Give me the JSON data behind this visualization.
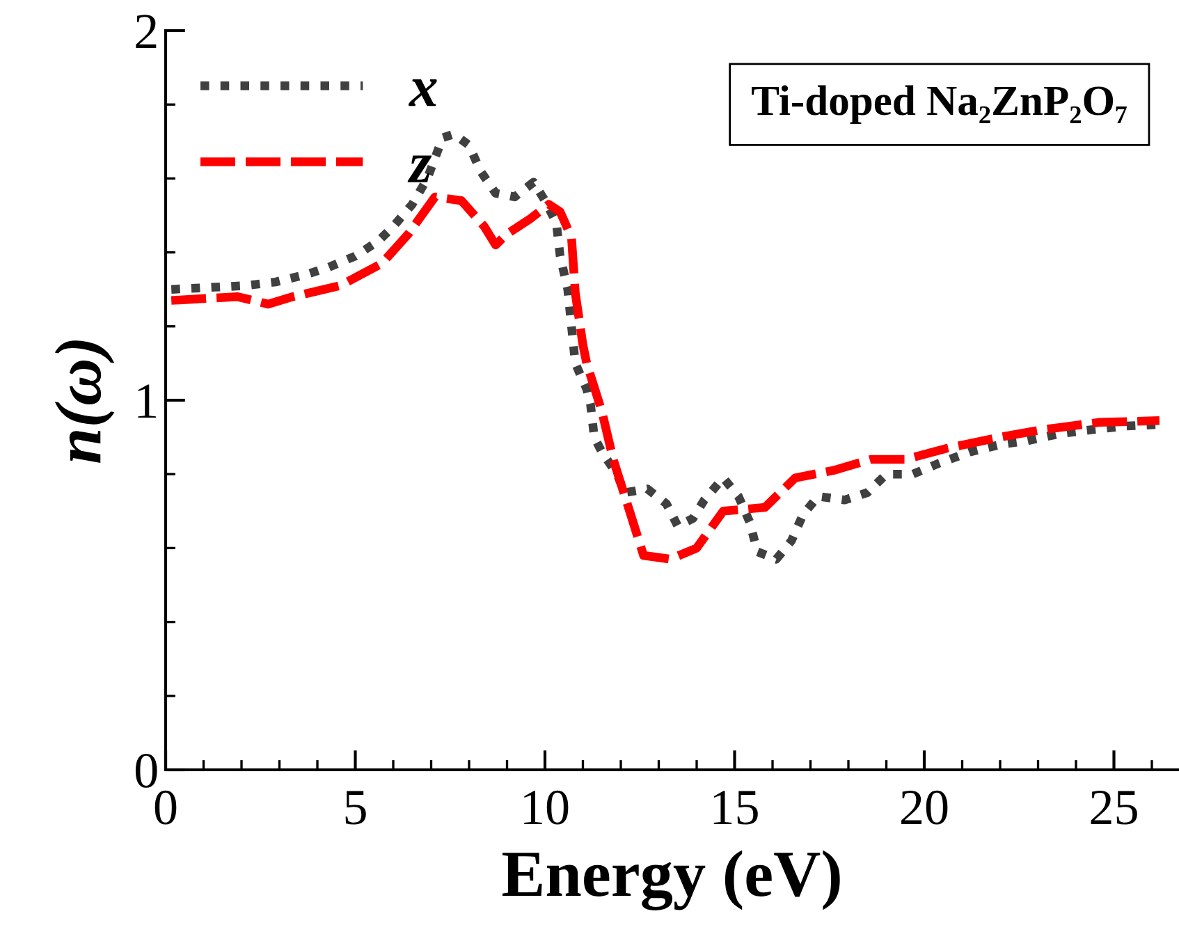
{
  "chart_data": {
    "type": "line",
    "xlabel": "Energy (eV)",
    "ylabel": "n(ω)",
    "xlim": [
      0,
      26.7
    ],
    "xticks": [
      0,
      5,
      10,
      15,
      20,
      25
    ],
    "ylim": [
      0,
      2
    ],
    "yticks": [
      0,
      1,
      2
    ],
    "grid": false,
    "legend": "top left",
    "marker": "none",
    "annotations": [
      "Ti-doped Na₂ZnP₂O₇"
    ],
    "series": [
      {
        "name": "x",
        "color": "#404040",
        "line_style": "dotted",
        "x": [
          0.15,
          2.1,
          2.9,
          3.7,
          4.3,
          5.0,
          5.6,
          6.0,
          6.5,
          6.9,
          7.3,
          7.6,
          8.0,
          8.3,
          8.7,
          9.2,
          9.7,
          10.0,
          10.3,
          10.4,
          10.6,
          10.7,
          10.8,
          11.1,
          11.2,
          11.3,
          11.5,
          11.9,
          12.1,
          12.7,
          13.2,
          13.5,
          13.9,
          14.2,
          14.7,
          15.1,
          15.4,
          15.6,
          16.1,
          16.5,
          16.8,
          17.2,
          17.9,
          18.5,
          19.0,
          19.7,
          20.4,
          21.2,
          22.0,
          22.7,
          23.6,
          24.4,
          25.3,
          26.3
        ],
        "values": [
          1.3,
          1.31,
          1.32,
          1.34,
          1.36,
          1.39,
          1.43,
          1.47,
          1.53,
          1.6,
          1.71,
          1.72,
          1.69,
          1.62,
          1.56,
          1.55,
          1.59,
          1.54,
          1.48,
          1.39,
          1.3,
          1.2,
          1.1,
          1.03,
          0.99,
          0.9,
          0.86,
          0.8,
          0.75,
          0.76,
          0.72,
          0.66,
          0.68,
          0.73,
          0.79,
          0.74,
          0.67,
          0.59,
          0.57,
          0.62,
          0.69,
          0.74,
          0.73,
          0.75,
          0.8,
          0.8,
          0.83,
          0.86,
          0.88,
          0.89,
          0.91,
          0.92,
          0.93,
          0.935
        ]
      },
      {
        "name": "z",
        "color": "#ff0000",
        "line_style": "dashed",
        "x": [
          0.15,
          1.9,
          2.7,
          3.35,
          4.6,
          5.7,
          6.4,
          7.1,
          7.8,
          8.4,
          8.7,
          9.0,
          9.6,
          10.1,
          10.4,
          10.7,
          10.8,
          11.0,
          11.1,
          11.5,
          11.8,
          12.2,
          12.6,
          13.3,
          14.0,
          14.7,
          15.8,
          16.6,
          17.6,
          18.6,
          19.5,
          20.6,
          22.0,
          23.1,
          24.6,
          26.2
        ],
        "values": [
          1.27,
          1.28,
          1.26,
          1.28,
          1.31,
          1.37,
          1.45,
          1.55,
          1.54,
          1.47,
          1.42,
          1.45,
          1.49,
          1.53,
          1.51,
          1.44,
          1.29,
          1.15,
          1.1,
          0.97,
          0.84,
          0.71,
          0.58,
          0.57,
          0.6,
          0.7,
          0.71,
          0.79,
          0.81,
          0.84,
          0.84,
          0.87,
          0.9,
          0.92,
          0.94,
          0.945
        ]
      }
    ]
  }
}
